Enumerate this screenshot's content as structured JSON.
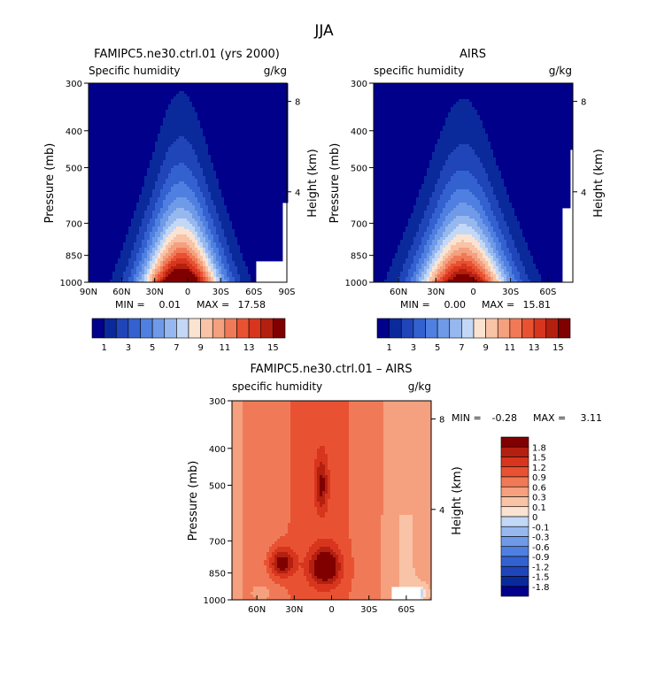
{
  "title": "JJA",
  "chart_data": [
    {
      "type": "heatmap",
      "title": "FAMIPC5.ne30.ctrl.01 (yrs 2000)",
      "subtitle_left": "Specific humidity",
      "units": "g/kg",
      "ylabel": "Pressure (mb)",
      "ylabel_right": "Height (km)",
      "x_ticks": [
        "90N",
        "60N",
        "30N",
        "0",
        "30S",
        "60S",
        "90S"
      ],
      "y_ticks": [
        "300",
        "400",
        "500",
        "700",
        "850",
        "1000"
      ],
      "right_ticks": [
        "8",
        "4"
      ],
      "min_label": "MIN =",
      "min_value": "0.01",
      "max_label": "MAX =",
      "max_value": "17.58",
      "peak_value": 17.58,
      "peak_lat": 6,
      "colorbar_labels": [
        "1",
        "3",
        "5",
        "7",
        "9",
        "11",
        "13",
        "15"
      ]
    },
    {
      "type": "heatmap",
      "title": "AIRS",
      "subtitle_left": "specific humidity",
      "units": "g/kg",
      "ylabel": "Pressure (mb)",
      "ylabel_right": "Height (km)",
      "x_ticks": [
        "60N",
        "30N",
        "0",
        "30S",
        "60S"
      ],
      "y_ticks": [
        "300",
        "400",
        "500",
        "700",
        "850",
        "1000"
      ],
      "right_ticks": [
        "8",
        "4"
      ],
      "min_label": "MIN =",
      "min_value": "0.00",
      "max_label": "MAX =",
      "max_value": "15.81",
      "peak_value": 15.81,
      "peak_lat": 8,
      "colorbar_labels": [
        "1",
        "3",
        "5",
        "7",
        "9",
        "11",
        "13",
        "15"
      ]
    },
    {
      "type": "heatmap",
      "title": "FAMIPC5.ne30.ctrl.01 – AIRS",
      "subtitle_left": "specific humidity",
      "units": "g/kg",
      "ylabel": "Pressure (mb)",
      "ylabel_right": "Height (km)",
      "x_ticks": [
        "60N",
        "30N",
        "0",
        "30S",
        "60S"
      ],
      "y_ticks": [
        "300",
        "400",
        "500",
        "700",
        "850",
        "1000"
      ],
      "right_ticks": [
        "8",
        "4"
      ],
      "min_label": "MIN =",
      "min_value": "-0.28",
      "max_label": "MAX =",
      "max_value": "3.11",
      "colorbar_labels": [
        "1.8",
        "1.5",
        "1.2",
        "0.9",
        "0.6",
        "0.3",
        "0.1",
        "0",
        "-0.1",
        "-0.3",
        "-0.6",
        "-0.9",
        "-1.2",
        "-1.5",
        "-1.8"
      ]
    }
  ],
  "colors": {
    "scale_16": [
      "#00008b",
      "#0a2a9c",
      "#1f45b8",
      "#3461d0",
      "#4f7fe0",
      "#6f9ae8",
      "#96b8ef",
      "#c3d8f6",
      "#fbe3d2",
      "#f8c3a6",
      "#f5a07e",
      "#f07a57",
      "#e85232",
      "#d8351f",
      "#b4200f",
      "#800000"
    ],
    "diff_16": [
      "#00008b",
      "#0a2a9c",
      "#1f45b8",
      "#3461d0",
      "#4f7fe0",
      "#6f9ae8",
      "#96b8ef",
      "#c3d8f6",
      "#fbe3d2",
      "#f8c3a6",
      "#f5a07e",
      "#f07a57",
      "#e85232",
      "#d8351f",
      "#b4200f",
      "#800000"
    ]
  }
}
